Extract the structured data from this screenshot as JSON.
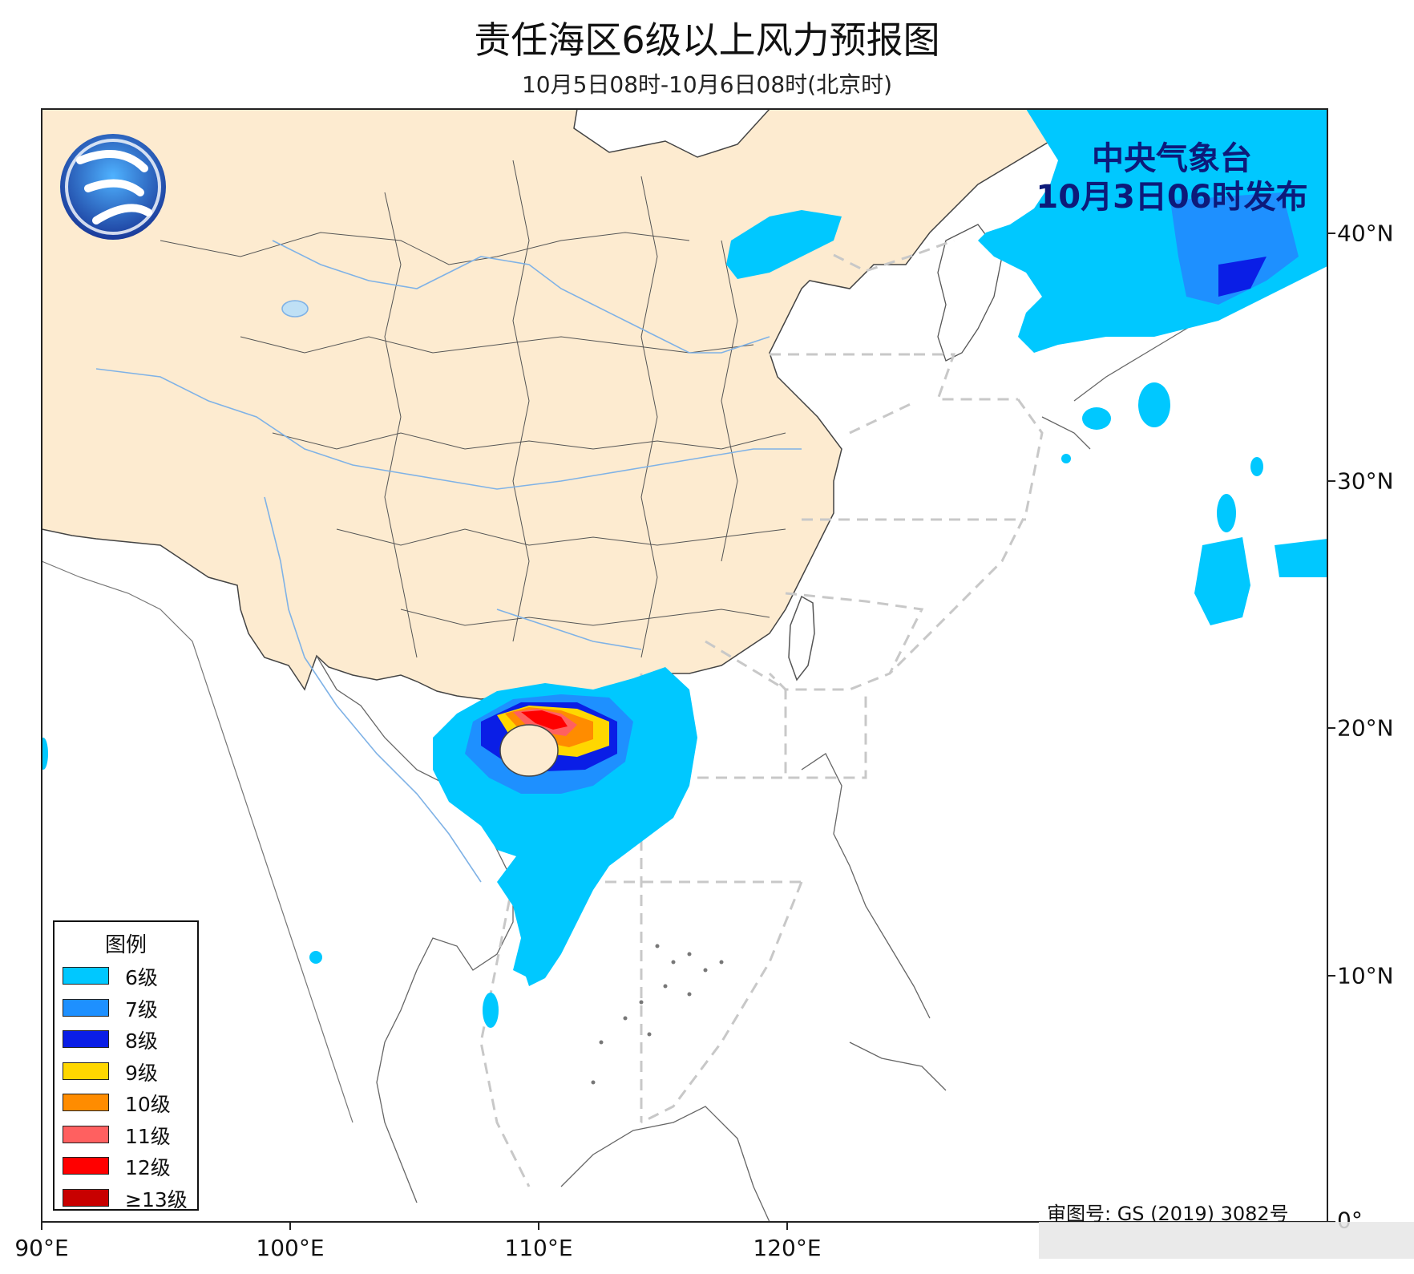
{
  "header": {
    "title": "责任海区6级以上风力预报图",
    "subtitle": "10月5日08时-10月6日08时(北京时)"
  },
  "publisher": {
    "line1": "中央气象台",
    "line2": "10月3日06时发布"
  },
  "review_number": "审图号: GS (2019) 3082号",
  "legend": {
    "title": "图例",
    "items": [
      {
        "label": "6级",
        "color": "#00c8ff"
      },
      {
        "label": "7级",
        "color": "#1e90ff"
      },
      {
        "label": "8级",
        "color": "#0a1ee6"
      },
      {
        "label": "9级",
        "color": "#ffd700"
      },
      {
        "label": "10级",
        "color": "#ff8c00"
      },
      {
        "label": "11级",
        "color": "#ff6060"
      },
      {
        "label": "12级",
        "color": "#ff0000"
      },
      {
        "label": "≥13级",
        "color": "#c80000"
      }
    ]
  },
  "axes": {
    "lon_labels": [
      "90°E",
      "100°E",
      "110°E",
      "120°E"
    ],
    "lat_labels": [
      "40°N",
      "30°N",
      "20°N",
      "10°N",
      "0°"
    ]
  },
  "colors": {
    "land_china": "#fdebd0",
    "land_other": "#ffffff",
    "sea": "#ffffff",
    "river": "#7fb2e6",
    "border": "#333333",
    "sea_boundary": "#c8c8c8"
  },
  "icons": {
    "logo": "cma-logo-icon"
  }
}
